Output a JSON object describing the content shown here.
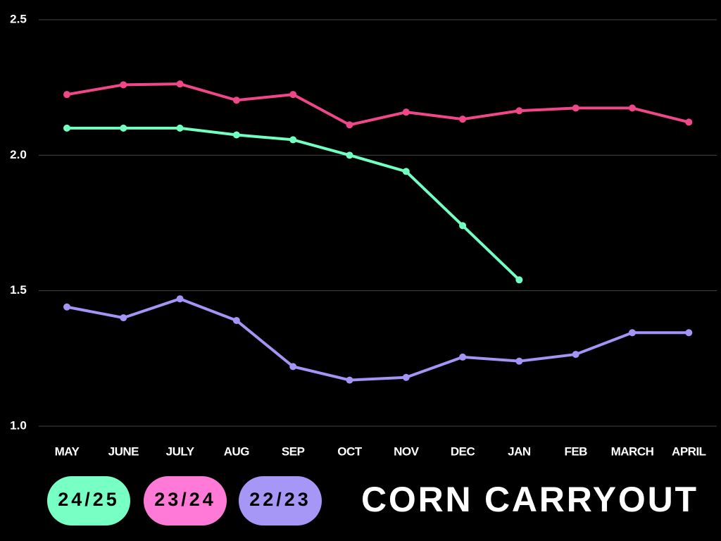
{
  "chart_data": {
    "type": "line",
    "title": "CORN CARRYOUT",
    "categories": [
      "MAY",
      "JUNE",
      "JULY",
      "AUG",
      "SEP",
      "OCT",
      "NOV",
      "DEC",
      "JAN",
      "FEB",
      "MARCH",
      "APRIL"
    ],
    "series": [
      {
        "name": "24/25",
        "color": "#72ffc2",
        "values": [
          2.1,
          2.1,
          2.1,
          2.075,
          2.057,
          2.0,
          1.94,
          1.74,
          1.54,
          null,
          null,
          null
        ]
      },
      {
        "name": "23/24",
        "color": "#f0478a",
        "values": [
          2.224,
          2.26,
          2.263,
          2.203,
          2.224,
          2.112,
          2.159,
          2.133,
          2.164,
          2.174,
          2.174,
          2.122
        ]
      },
      {
        "name": "22/23",
        "color": "#a593f5",
        "values": [
          1.44,
          1.4,
          1.47,
          1.39,
          1.22,
          1.17,
          1.18,
          1.255,
          1.24,
          1.265,
          1.345,
          1.345
        ]
      }
    ],
    "legend_colors": [
      "#77ffc4",
      "#ff7ad6",
      "#a696f5"
    ],
    "ylim": [
      1.0,
      2.5
    ],
    "yticks": [
      {
        "value": 1,
        "label": "1.0"
      },
      1.5,
      {
        "value": 2,
        "label": "2.0"
      },
      2.5
    ],
    "grid": true
  }
}
